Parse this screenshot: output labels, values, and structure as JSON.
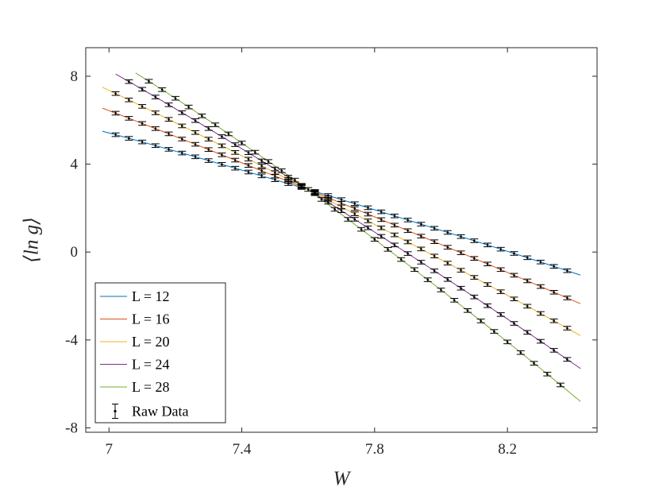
{
  "chart_data": {
    "type": "line",
    "title": "",
    "xlabel": "W",
    "ylabel": "⟨ln g⟩",
    "xlim": [
      6.93,
      8.47
    ],
    "ylim": [
      -8.2,
      9.3
    ],
    "x_ticks": [
      7.0,
      7.4,
      7.8,
      8.2
    ],
    "x_tick_labels": [
      "7",
      "7.4",
      "7.8",
      "8.2"
    ],
    "y_ticks": [
      8,
      4,
      0,
      -4,
      -8
    ],
    "y_tick_labels": [
      "8",
      "4",
      "0",
      "-4",
      "-8"
    ],
    "grid": false,
    "legend_position": "bottom-left",
    "crossing_point": {
      "x": 7.6,
      "y": 2.85
    },
    "series": [
      {
        "name": "L = 12",
        "color": "#0072BD",
        "x_range": [
          6.98,
          8.42
        ],
        "y_start": 5.5,
        "y_end": -1.05,
        "points_x_start": 7.02,
        "points_x_end": 8.38
      },
      {
        "name": "L = 16",
        "color": "#D95319",
        "x_range": [
          6.98,
          8.42
        ],
        "y_start": 6.55,
        "y_end": -2.35,
        "points_x_start": 7.02,
        "points_x_end": 8.38
      },
      {
        "name": "L = 20",
        "color": "#EDB120",
        "x_range": [
          6.98,
          8.42
        ],
        "y_start": 7.5,
        "y_end": -3.8,
        "points_x_start": 7.02,
        "points_x_end": 8.38
      },
      {
        "name": "L = 24",
        "color": "#7E2F8E",
        "x_range": [
          7.02,
          8.42
        ],
        "y_start": 8.1,
        "y_end": -5.3,
        "points_x_start": 7.06,
        "points_x_end": 8.38
      },
      {
        "name": "L = 28",
        "color": "#77AC30",
        "x_range": [
          7.08,
          8.42
        ],
        "y_start": 8.15,
        "y_end": -6.8,
        "points_x_start": 7.12,
        "points_x_end": 8.38
      }
    ],
    "raw_data_label": "Raw Data",
    "points_step": 0.04,
    "curvature": 0.55
  }
}
